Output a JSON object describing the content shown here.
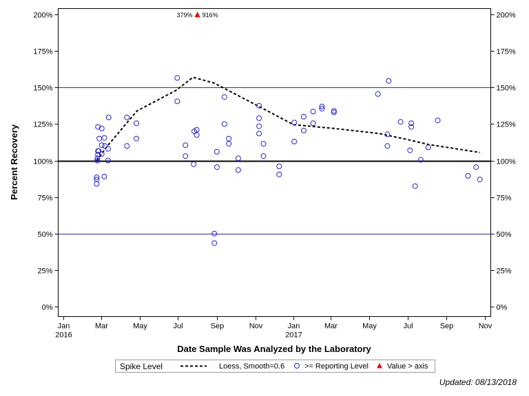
{
  "chart_data": {
    "type": "scatter",
    "xlabel": "Date Sample Was Analyzed by the Laboratory",
    "ylabel": "Percent Recovery",
    "xlim": [
      "2016-01-01",
      "2016-11-01 +1y"
    ],
    "x_range_dates": [
      "2016-01-01",
      "2017-11-01"
    ],
    "ylim": [
      0,
      200
    ],
    "y_ticks": [
      0,
      25,
      50,
      75,
      100,
      125,
      150,
      175,
      200
    ],
    "y_tick_labels": [
      "0%",
      "25%",
      "50%",
      "75%",
      "100%",
      "125%",
      "150%",
      "175%",
      "200%"
    ],
    "x_ticks": [
      {
        "date": "2016-01-01",
        "label": "Jan",
        "year": "2016"
      },
      {
        "date": "2016-03-01",
        "label": "Mar",
        "year": ""
      },
      {
        "date": "2016-05-01",
        "label": "May",
        "year": ""
      },
      {
        "date": "2016-07-01",
        "label": "Jul",
        "year": ""
      },
      {
        "date": "2016-09-01",
        "label": "Sep",
        "year": ""
      },
      {
        "date": "2016-11-01",
        "label": "Nov",
        "year": ""
      },
      {
        "date": "2017-01-01",
        "label": "Jan",
        "year": "2017"
      },
      {
        "date": "2017-03-01",
        "label": "Mar",
        "year": ""
      },
      {
        "date": "2017-05-01",
        "label": "May",
        "year": ""
      },
      {
        "date": "2017-07-01",
        "label": "Jul",
        "year": ""
      },
      {
        "date": "2017-09-01",
        "label": "Sep",
        "year": ""
      },
      {
        "date": "2017-11-01",
        "label": "Nov",
        "year": ""
      }
    ],
    "reference_lines": [
      {
        "y": 100,
        "style": "solid-bold",
        "color": "#000000"
      },
      {
        "y": 150,
        "style": "thin",
        "color": "#2b2b9a"
      },
      {
        "y": 50,
        "style": "thin",
        "color": "#2b2b9a"
      }
    ],
    "series": [
      {
        "name": ">= Reporting Level",
        "marker": "open-circle",
        "color": "#2222cc",
        "points": [
          [
            "2016-02-23",
            88.5
          ],
          [
            "2016-02-23",
            87
          ],
          [
            "2016-02-23",
            84
          ],
          [
            "2016-02-24",
            100
          ],
          [
            "2016-02-24",
            101.5
          ],
          [
            "2016-02-25",
            104
          ],
          [
            "2016-02-25",
            106.5
          ],
          [
            "2016-02-25",
            123
          ],
          [
            "2016-02-26",
            106.5
          ],
          [
            "2016-02-27",
            115
          ],
          [
            "2016-03-02",
            122
          ],
          [
            "2016-03-02",
            110.5
          ],
          [
            "2016-03-02",
            104.5
          ],
          [
            "2016-03-06",
            89
          ],
          [
            "2016-03-06",
            115.5
          ],
          [
            "2016-03-07",
            110
          ],
          [
            "2016-03-12",
            108
          ],
          [
            "2016-03-12",
            100
          ],
          [
            "2016-03-13",
            129.5
          ],
          [
            "2016-04-11",
            110
          ],
          [
            "2016-04-11",
            129.5
          ],
          [
            "2016-04-26",
            125.5
          ],
          [
            "2016-04-26",
            115
          ],
          [
            "2016-06-30",
            156.5
          ],
          [
            "2016-06-30",
            140.5
          ],
          [
            "2016-07-13",
            110.5
          ],
          [
            "2016-07-13",
            103
          ],
          [
            "2016-07-26",
            97.5
          ],
          [
            "2016-07-27",
            120
          ],
          [
            "2016-07-31",
            121
          ],
          [
            "2016-07-31",
            117.5
          ],
          [
            "2016-08-28",
            50
          ],
          [
            "2016-08-28",
            43.5
          ],
          [
            "2016-09-01",
            106
          ],
          [
            "2016-09-01",
            95.5
          ],
          [
            "2016-09-13",
            143.5
          ],
          [
            "2016-09-13",
            125
          ],
          [
            "2016-09-20",
            115
          ],
          [
            "2016-09-20",
            111.5
          ],
          [
            "2016-10-05",
            101.5
          ],
          [
            "2016-10-05",
            93.5
          ],
          [
            "2016-11-07",
            137.5
          ],
          [
            "2016-11-07",
            129
          ],
          [
            "2016-11-07",
            123.5
          ],
          [
            "2016-11-07",
            118.5
          ],
          [
            "2016-11-14",
            103
          ],
          [
            "2016-11-14",
            111.5
          ],
          [
            "2016-12-09",
            96
          ],
          [
            "2016-12-09",
            90.5
          ],
          [
            "2017-01-02",
            126
          ],
          [
            "2017-01-02",
            113
          ],
          [
            "2017-01-17",
            130
          ],
          [
            "2017-01-17",
            120.5
          ],
          [
            "2017-02-01",
            133.5
          ],
          [
            "2017-02-01",
            125.5
          ],
          [
            "2017-02-15",
            137
          ],
          [
            "2017-02-15",
            135.5
          ],
          [
            "2017-03-06",
            134
          ],
          [
            "2017-03-06",
            133
          ],
          [
            "2017-05-15",
            145.5
          ],
          [
            "2017-05-30",
            118
          ],
          [
            "2017-05-30",
            110
          ],
          [
            "2017-06-01",
            154.5
          ],
          [
            "2017-06-20",
            126.5
          ],
          [
            "2017-07-05",
            107
          ],
          [
            "2017-07-07",
            125.5
          ],
          [
            "2017-07-07",
            123
          ],
          [
            "2017-07-13",
            82.5
          ],
          [
            "2017-07-22",
            100.5
          ],
          [
            "2017-08-03",
            109
          ],
          [
            "2017-08-18",
            127.5
          ],
          [
            "2017-10-05",
            89.5
          ],
          [
            "2017-10-18",
            95.5
          ],
          [
            "2017-10-24",
            87
          ]
        ]
      },
      {
        "name": "Value > axis",
        "marker": "filled-triangle",
        "color": "#ee0000",
        "points": [
          [
            "2016-08-01",
            200
          ]
        ],
        "labels": [
          "379%",
          "916%"
        ]
      },
      {
        "name": "Loess, Smoothing=0.6",
        "type": "line",
        "style": "dashed",
        "color": "#000000",
        "points": [
          [
            "2016-02-23",
            100
          ],
          [
            "2016-03-11",
            110
          ],
          [
            "2016-04-27",
            134
          ],
          [
            "2016-06-28",
            148
          ],
          [
            "2016-07-25",
            157
          ],
          [
            "2016-08-28",
            153
          ],
          [
            "2016-11-07",
            137
          ],
          [
            "2017-01-01",
            124.5
          ],
          [
            "2017-03-06",
            122
          ],
          [
            "2017-05-17",
            118.5
          ],
          [
            "2017-07-05",
            114
          ],
          [
            "2017-08-03",
            111
          ],
          [
            "2017-10-24",
            105.5
          ]
        ]
      }
    ],
    "legend": {
      "title": "Spike Level",
      "placement": "bottom",
      "entries": [
        {
          "label": "Loess, Smooth=0.6",
          "symbol": "dashed-line"
        },
        {
          "label": ">= Reporting Level",
          "symbol": "open-circle"
        },
        {
          "label": "Value > axis",
          "symbol": "filled-triangle"
        }
      ]
    },
    "grid": false
  },
  "footnote": "Updated: 08/13/2018"
}
